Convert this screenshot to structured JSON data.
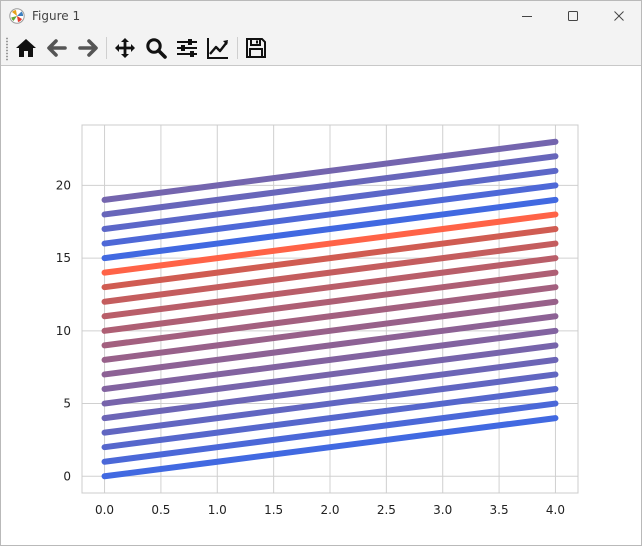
{
  "window": {
    "title": "Figure 1",
    "app_icon": "matplotlib-icon",
    "controls": {
      "minimize_icon": "minimize-icon",
      "maximize_icon": "maximize-icon",
      "close_icon": "close-icon"
    }
  },
  "toolbar": {
    "items": [
      {
        "name": "home-button",
        "icon": "home-icon"
      },
      {
        "name": "back-button",
        "icon": "arrow-left-icon"
      },
      {
        "name": "forward-button",
        "icon": "arrow-right-icon"
      },
      {
        "name": "pan-button",
        "icon": "move-icon"
      },
      {
        "name": "zoom-button",
        "icon": "magnifier-icon"
      },
      {
        "name": "configure-subplots-button",
        "icon": "sliders-icon"
      },
      {
        "name": "edit-axes-button",
        "icon": "line-chart-icon"
      },
      {
        "name": "save-button",
        "icon": "floppy-disk-icon"
      }
    ]
  },
  "chart_data": {
    "type": "line",
    "title": "",
    "xlabel": "",
    "ylabel": "",
    "xlim": [
      -0.2,
      4.2
    ],
    "ylim": [
      -1.15,
      24.15
    ],
    "xticks": [
      0.0,
      0.5,
      1.0,
      1.5,
      2.0,
      2.5,
      3.0,
      3.5,
      4.0
    ],
    "xtick_labels": [
      "0.0",
      "0.5",
      "1.0",
      "1.5",
      "2.0",
      "2.5",
      "3.0",
      "3.5",
      "4.0"
    ],
    "yticks": [
      0,
      5,
      10,
      15,
      20
    ],
    "ytick_labels": [
      "0",
      "5",
      "10",
      "15",
      "20"
    ],
    "grid": true,
    "legend": "none",
    "x": [
      0,
      1,
      2,
      3,
      4
    ],
    "series": [
      {
        "values": [
          0,
          1,
          2,
          3,
          4
        ],
        "color": "#4169e1"
      },
      {
        "values": [
          1,
          2,
          3,
          4,
          5
        ],
        "color": "#4b68d8"
      },
      {
        "values": [
          2,
          3,
          4,
          5,
          6
        ],
        "color": "#5667cc"
      },
      {
        "values": [
          3,
          4,
          5,
          6,
          7
        ],
        "color": "#6166c1"
      },
      {
        "values": [
          4,
          5,
          6,
          7,
          8
        ],
        "color": "#6c65b6"
      },
      {
        "values": [
          5,
          6,
          7,
          8,
          9
        ],
        "color": "#7764ab"
      },
      {
        "values": [
          6,
          7,
          8,
          9,
          10
        ],
        "color": "#8263a0"
      },
      {
        "values": [
          7,
          8,
          9,
          10,
          11
        ],
        "color": "#8d6295"
      },
      {
        "values": [
          8,
          9,
          10,
          11,
          12
        ],
        "color": "#98618a"
      },
      {
        "values": [
          9,
          10,
          11,
          12,
          13
        ],
        "color": "#a3607f"
      },
      {
        "values": [
          10,
          11,
          12,
          13,
          14
        ],
        "color": "#ae5f74"
      },
      {
        "values": [
          11,
          12,
          13,
          14,
          15
        ],
        "color": "#b95e69"
      },
      {
        "values": [
          12,
          13,
          14,
          15,
          16
        ],
        "color": "#c45d5e"
      },
      {
        "values": [
          13,
          14,
          15,
          16,
          17
        ],
        "color": "#d05c52"
      },
      {
        "values": [
          14,
          15,
          16,
          17,
          18
        ],
        "color": "#ff6347"
      },
      {
        "values": [
          15,
          16,
          17,
          18,
          19
        ],
        "color": "#4169e1"
      },
      {
        "values": [
          16,
          17,
          18,
          19,
          20
        ],
        "color": "#4e68d7"
      },
      {
        "values": [
          17,
          18,
          19,
          20,
          21
        ],
        "color": "#5c67c8"
      },
      {
        "values": [
          18,
          19,
          20,
          21,
          22
        ],
        "color": "#6866ba"
      },
      {
        "values": [
          19,
          20,
          21,
          22,
          23
        ],
        "color": "#7465ae"
      }
    ]
  }
}
